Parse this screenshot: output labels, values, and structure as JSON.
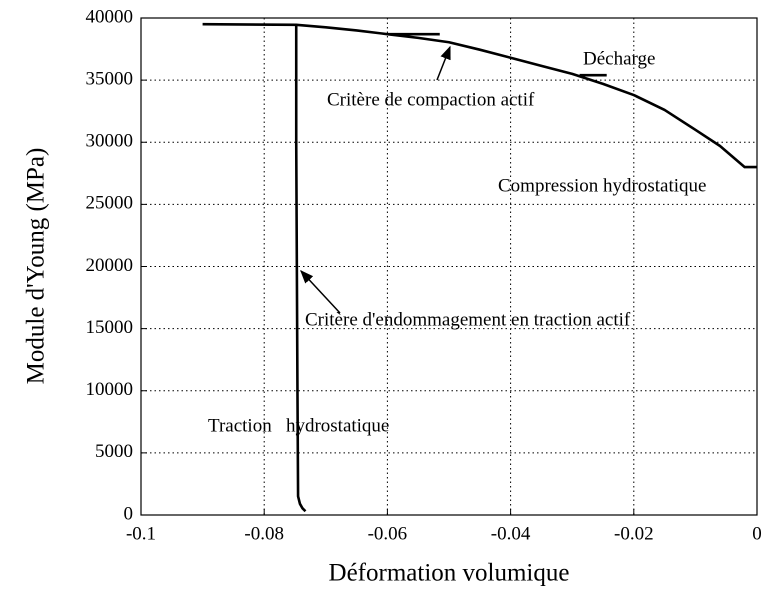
{
  "chart_data": {
    "type": "line",
    "xlabel": "Déformation volumique",
    "ylabel": "Module d'Young (MPa)",
    "xlim": [
      -0.1,
      0
    ],
    "xticks": [
      -0.1,
      -0.08,
      -0.06,
      -0.04,
      -0.02,
      0
    ],
    "ylim": [
      0,
      40000
    ],
    "yticks": [
      0,
      5000,
      10000,
      15000,
      20000,
      25000,
      30000,
      35000,
      40000
    ],
    "grid": true,
    "series": [
      {
        "color": "#000000",
        "x": [
          -0.09,
          -0.0748,
          -0.07,
          -0.065,
          -0.06,
          -0.055,
          -0.05,
          -0.045,
          -0.04,
          -0.035,
          -0.03,
          -0.025,
          -0.02,
          -0.015,
          -0.01,
          -0.006,
          -0.002,
          0
        ],
        "values": [
          39500,
          39450,
          39250,
          39000,
          38700,
          38400,
          38050,
          37450,
          36800,
          36150,
          35500,
          34700,
          33800,
          32600,
          31000,
          29700,
          28000,
          28000
        ]
      },
      {
        "color": "#000000",
        "x": [
          -0.0748,
          -0.0748,
          -0.0747,
          -0.0746,
          -0.0745,
          -0.0742,
          -0.0738,
          -0.0733
        ],
        "values": [
          39450,
          30000,
          20000,
          10000,
          1500,
          900,
          550,
          300
        ]
      },
      {
        "color": "#000000",
        "x": [
          -0.06,
          -0.0515
        ],
        "values": [
          38700,
          38700
        ]
      },
      {
        "color": "#000000",
        "x": [
          -0.0288,
          -0.0244
        ],
        "values": [
          35400,
          35400
        ]
      }
    ],
    "annotations": [
      "Décharge",
      "Critère de compaction actif",
      "Compression hydrostatique",
      "Critère d'endommagement en traction actif",
      "Traction   hydrostatique"
    ]
  }
}
